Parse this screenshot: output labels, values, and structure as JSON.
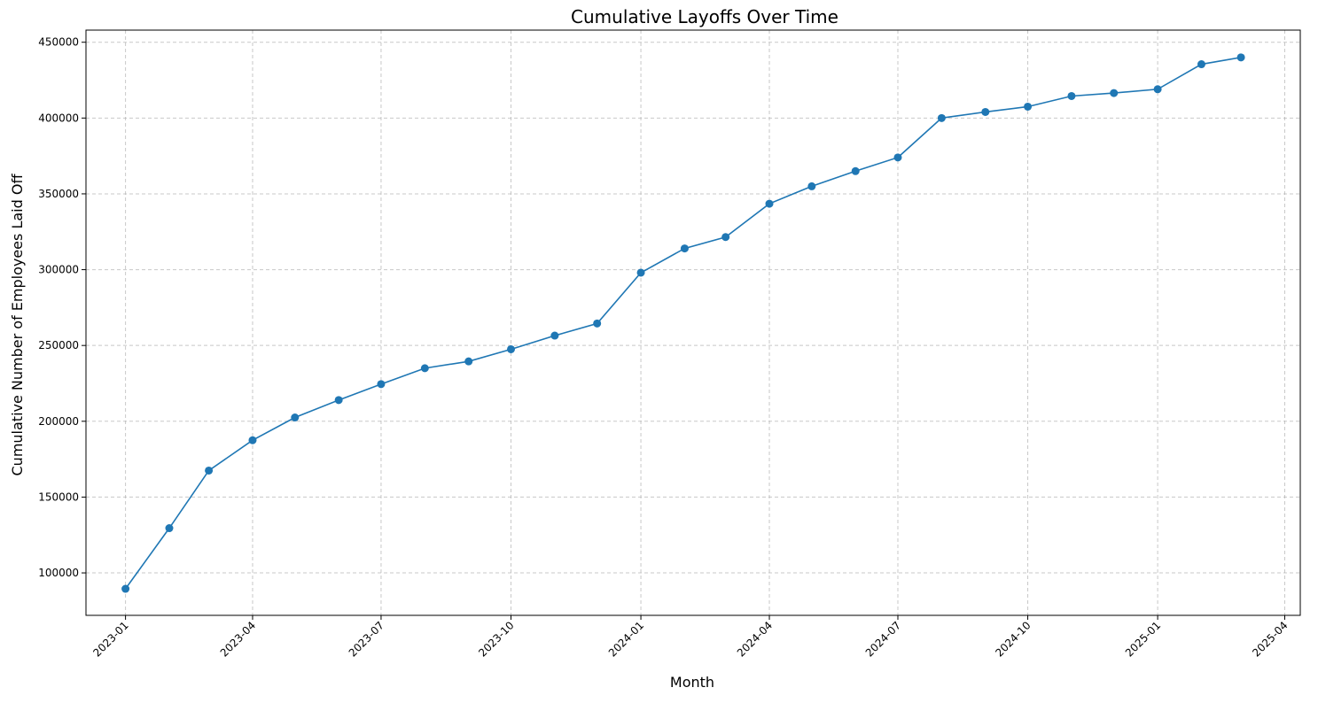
{
  "chart_data": {
    "type": "line",
    "title": "Cumulative Layoffs Over Time",
    "xlabel": "Month",
    "ylabel": "Cumulative Number of Employees Laid Off",
    "x_tick_labels": [
      "2023-01",
      "2023-04",
      "2023-07",
      "2023-10",
      "2024-01",
      "2024-04",
      "2024-07",
      "2024-10",
      "2025-01",
      "2025-04"
    ],
    "y_tick_labels": [
      "100000",
      "150000",
      "200000",
      "250000",
      "300000",
      "350000",
      "400000",
      "450000"
    ],
    "ylim": [
      72000,
      458000
    ],
    "xlim": [
      "2022-12-04",
      "2025-04-12"
    ],
    "grid": true,
    "color": "#1f77b4",
    "marker": "circle",
    "series": [
      {
        "x": [
          "2023-01-01",
          "2023-02-01",
          "2023-03-01",
          "2023-04-01",
          "2023-05-01",
          "2023-06-01",
          "2023-07-01",
          "2023-08-01",
          "2023-09-01",
          "2023-10-01",
          "2023-11-01",
          "2023-12-01",
          "2024-01-01",
          "2024-02-01",
          "2024-03-01",
          "2024-04-01",
          "2024-05-01",
          "2024-06-01",
          "2024-07-01",
          "2024-08-01",
          "2024-09-01",
          "2024-10-01",
          "2024-11-01",
          "2024-12-01",
          "2025-01-01",
          "2025-02-01",
          "2025-03-01"
        ],
        "values": [
          89500,
          129500,
          167500,
          187500,
          202500,
          214000,
          224500,
          235000,
          239500,
          247500,
          256500,
          264500,
          298000,
          314000,
          321500,
          343500,
          355000,
          365000,
          374000,
          400000,
          404000,
          407500,
          414500,
          416500,
          419000,
          435500,
          440000
        ]
      }
    ]
  }
}
